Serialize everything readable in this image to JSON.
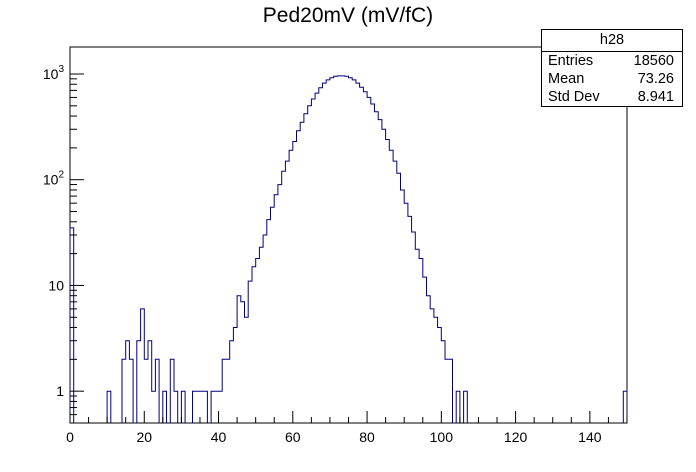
{
  "chart_data": {
    "type": "histogram",
    "title": "Ped20mV (mV/fC)",
    "xlabel": "",
    "ylabel": "",
    "xlim": [
      0,
      150
    ],
    "ylim": [
      0.5,
      1800
    ],
    "yscale": "log",
    "x_ticks": [
      0,
      20,
      40,
      60,
      80,
      100,
      120,
      140
    ],
    "y_ticks": [
      {
        "value": 1,
        "label": "1"
      },
      {
        "value": 10,
        "label": "10"
      },
      {
        "value": 100,
        "label": "10",
        "sup": "2"
      },
      {
        "value": 1000,
        "label": "10",
        "sup": "3"
      }
    ],
    "grid": false,
    "legend": "none",
    "bin_width": 1,
    "line_color": "#000080",
    "bins": [
      [
        0,
        35
      ],
      [
        10,
        1
      ],
      [
        14,
        2
      ],
      [
        15,
        3
      ],
      [
        16,
        2
      ],
      [
        18,
        3
      ],
      [
        19,
        6
      ],
      [
        20,
        2
      ],
      [
        21,
        3
      ],
      [
        22,
        1
      ],
      [
        23,
        2
      ],
      [
        25,
        1
      ],
      [
        27,
        2
      ],
      [
        28,
        1
      ],
      [
        30,
        1
      ],
      [
        33,
        1
      ],
      [
        34,
        1
      ],
      [
        35,
        1
      ],
      [
        36,
        1
      ],
      [
        38,
        1
      ],
      [
        39,
        1
      ],
      [
        40,
        1
      ],
      [
        41,
        2
      ],
      [
        42,
        2
      ],
      [
        43,
        3
      ],
      [
        44,
        4
      ],
      [
        45,
        8
      ],
      [
        46,
        7
      ],
      [
        47,
        5
      ],
      [
        48,
        11
      ],
      [
        49,
        15
      ],
      [
        50,
        18
      ],
      [
        51,
        23
      ],
      [
        52,
        30
      ],
      [
        53,
        42
      ],
      [
        54,
        55
      ],
      [
        55,
        72
      ],
      [
        56,
        90
      ],
      [
        57,
        120
      ],
      [
        58,
        150
      ],
      [
        59,
        190
      ],
      [
        60,
        230
      ],
      [
        61,
        290
      ],
      [
        62,
        350
      ],
      [
        63,
        420
      ],
      [
        64,
        500
      ],
      [
        65,
        580
      ],
      [
        66,
        660
      ],
      [
        67,
        740
      ],
      [
        68,
        820
      ],
      [
        69,
        880
      ],
      [
        70,
        920
      ],
      [
        71,
        950
      ],
      [
        72,
        960
      ],
      [
        73,
        960
      ],
      [
        74,
        950
      ],
      [
        75,
        920
      ],
      [
        76,
        880
      ],
      [
        77,
        820
      ],
      [
        78,
        750
      ],
      [
        79,
        680
      ],
      [
        80,
        600
      ],
      [
        81,
        520
      ],
      [
        82,
        440
      ],
      [
        83,
        370
      ],
      [
        84,
        300
      ],
      [
        85,
        240
      ],
      [
        86,
        190
      ],
      [
        87,
        150
      ],
      [
        88,
        115
      ],
      [
        89,
        80
      ],
      [
        90,
        60
      ],
      [
        91,
        45
      ],
      [
        92,
        32
      ],
      [
        93,
        22
      ],
      [
        94,
        18
      ],
      [
        95,
        12
      ],
      [
        96,
        8
      ],
      [
        97,
        6
      ],
      [
        98,
        5
      ],
      [
        99,
        4
      ],
      [
        100,
        3
      ],
      [
        101,
        2
      ],
      [
        102,
        2
      ],
      [
        104,
        1
      ],
      [
        106,
        1
      ],
      [
        149,
        1
      ]
    ],
    "stats": {
      "name": "h28",
      "entries_label": "Entries",
      "entries": "18560",
      "mean_label": "Mean",
      "mean": "73.26",
      "stddev_label": "Std Dev",
      "stddev": "8.941"
    }
  }
}
